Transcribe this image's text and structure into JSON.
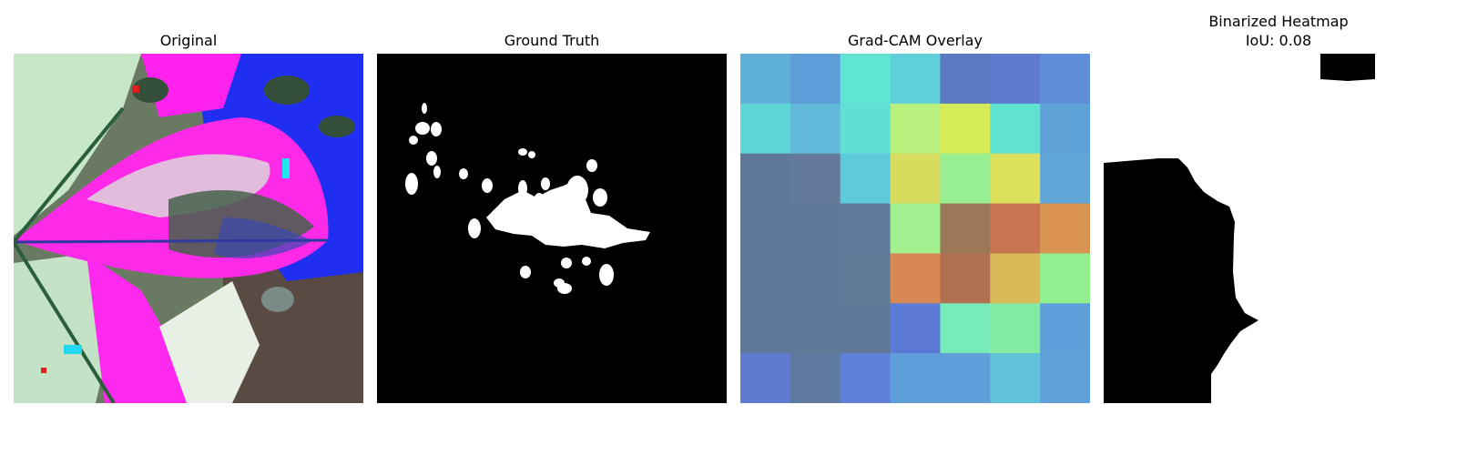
{
  "figure": {
    "panels": [
      {
        "title": "Original"
      },
      {
        "title": "Ground Truth"
      },
      {
        "title": "Grad-CAM Overlay"
      },
      {
        "title": "Binarized Heatmap",
        "subtitle": "IoU: 0.08"
      }
    ],
    "gradcam": {
      "grid": [
        [
          "#5fb0d8",
          "#5f9ed8",
          "#5fe5d2",
          "#5fcfda",
          "#5b7ac0",
          "#5f7ad0",
          "#5f8ed8"
        ],
        [
          "#5fd6d6",
          "#62b8d8",
          "#5fe0d4",
          "#b8f07e",
          "#d5ec58",
          "#5fe2d2",
          "#5fa2d8"
        ],
        [
          "#5f7898",
          "#647a9a",
          "#5fcadb",
          "#d8dc5e",
          "#98f092",
          "#dce05a",
          "#5fa5d8"
        ],
        [
          "#5f7898",
          "#5f7898",
          "#5f7a98",
          "#a0f090",
          "#9a7858",
          "#c87452",
          "#d99452"
        ],
        [
          "#5f7898",
          "#5f7898",
          "#607a98",
          "#d88852",
          "#b07052",
          "#d8ba58",
          "#90f090"
        ],
        [
          "#5f7898",
          "#5f7898",
          "#607898",
          "#5a7ad6",
          "#78ecb8",
          "#84eca2",
          "#5f9ed8"
        ],
        [
          "#5f7ad0",
          "#5f7aa0",
          "#5f80d8",
          "#5f9ed8",
          "#5f9ed8",
          "#5fc2d8",
          "#5fa0d8"
        ]
      ]
    }
  }
}
